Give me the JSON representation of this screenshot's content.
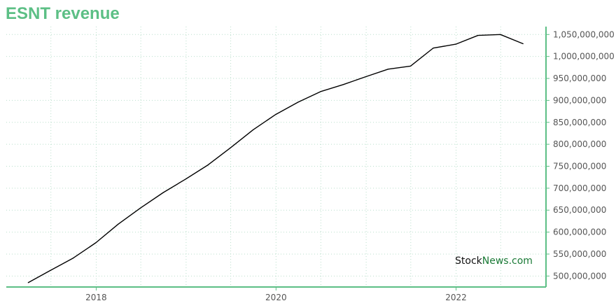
{
  "chart_data": {
    "type": "line",
    "title": "ESNT revenue",
    "xlabel": "",
    "ylabel": "",
    "x": [
      "2017-03-31",
      "2017-06-30",
      "2017-09-30",
      "2017-12-31",
      "2018-03-31",
      "2018-06-30",
      "2018-09-30",
      "2018-12-31",
      "2019-03-31",
      "2019-06-30",
      "2019-09-30",
      "2019-12-31",
      "2020-03-31",
      "2020-06-30",
      "2020-09-30",
      "2020-12-31",
      "2021-03-31",
      "2021-06-30",
      "2021-09-30",
      "2021-12-31",
      "2022-03-31",
      "2022-06-30",
      "2022-09-30"
    ],
    "series": [
      {
        "values": [
          485000000,
          513000000,
          541000000,
          576000000,
          618000000,
          655000000,
          690000000,
          721000000,
          753000000,
          792000000,
          833000000,
          868000000,
          896000000,
          920000000,
          936000000,
          954000000,
          971000000,
          978000000,
          1019000000,
          1028000000,
          1048000000,
          1050000000,
          1029000000
        ]
      }
    ],
    "xlim": [
      "2017-01-01",
      "2023-01-01"
    ],
    "ylim": [
      475000000,
      1068000000
    ],
    "x_ticks": [
      "2018",
      "2020",
      "2022"
    ],
    "y_ticks": [
      500000000,
      550000000,
      600000000,
      650000000,
      700000000,
      750000000,
      800000000,
      850000000,
      900000000,
      950000000,
      1000000000,
      1050000000
    ],
    "y_axis_side": "right",
    "grid": true,
    "line_color": "#000000",
    "accent_color": "#5cbf85",
    "grid_color": "#b9dfcb"
  },
  "watermark": {
    "part1": "Stock",
    "part2": "News",
    "part3": ".com"
  }
}
